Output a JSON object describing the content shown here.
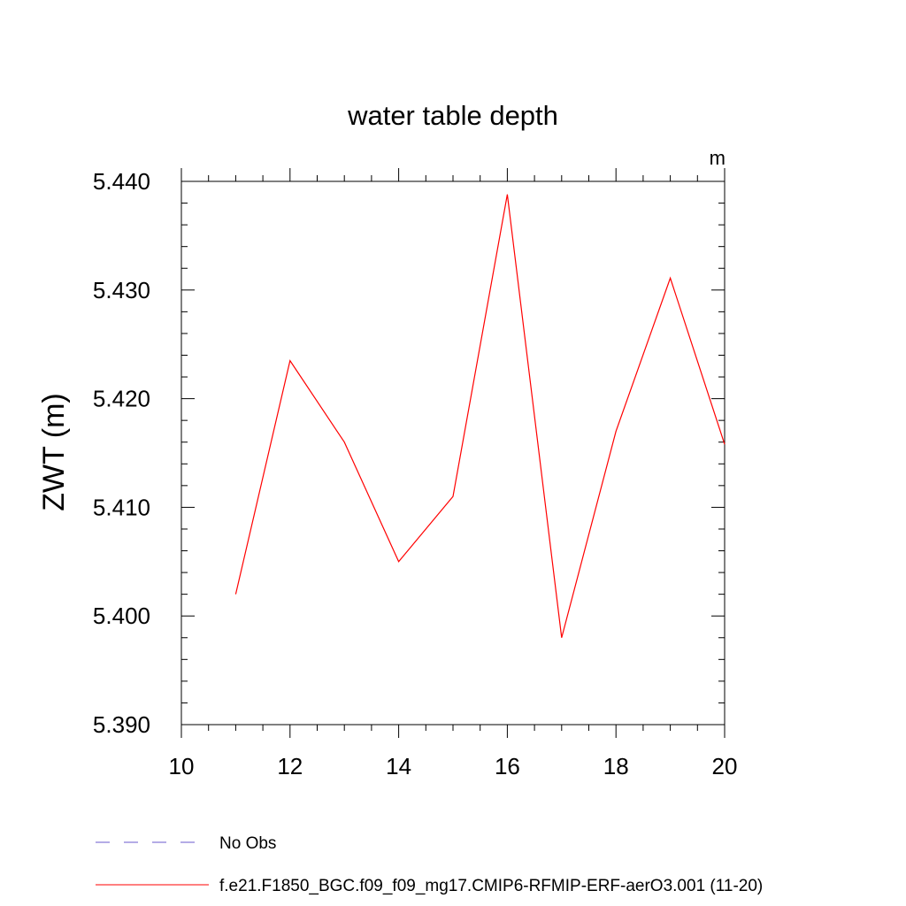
{
  "chart_data": {
    "type": "line",
    "title": "water table depth",
    "units": "m",
    "xlabel": "",
    "ylabel": "ZWT  (m)",
    "xlim": [
      10,
      20
    ],
    "ylim": [
      5.39,
      5.44
    ],
    "x_ticks": [
      "10",
      "12",
      "14",
      "16",
      "18",
      "20"
    ],
    "y_ticks": [
      "5.390",
      "5.400",
      "5.410",
      "5.420",
      "5.430",
      "5.440"
    ],
    "grid": false,
    "legend_position": "bottom",
    "series": [
      {
        "name": "f.e21.F1850_BGC.f09_f09_mg17.CMIP6-RFMIP-ERF-aerO3.001 (11-20)",
        "color": "#ff0000",
        "dash": "solid",
        "x": [
          11,
          12,
          13,
          14,
          15,
          16,
          17,
          18,
          19,
          20
        ],
        "y": [
          5.402,
          5.4235,
          5.416,
          5.405,
          5.411,
          5.4388,
          5.398,
          5.417,
          5.4311,
          5.4158
        ]
      }
    ],
    "legend": [
      {
        "label": "No Obs",
        "color": "#6a5acd",
        "dash": "dashed"
      },
      {
        "label": "f.e21.F1850_BGC.f09_f09_mg17.CMIP6-RFMIP-ERF-aerO3.001 (11-20)",
        "color": "#ff0000",
        "dash": "solid"
      }
    ]
  }
}
